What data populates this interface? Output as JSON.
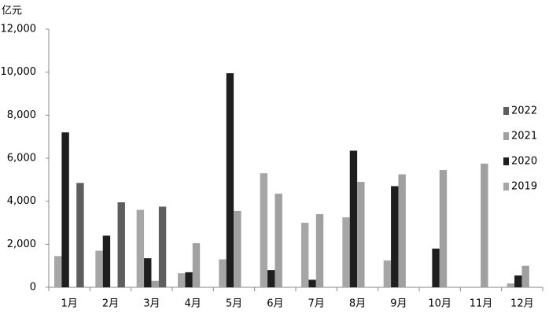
{
  "chart_data": {
    "type": "bar",
    "y_unit_label": "亿元",
    "categories": [
      "1月",
      "2月",
      "3月",
      "4月",
      "5月",
      "6月",
      "7月",
      "8月",
      "9月",
      "10月",
      "11月",
      "12月"
    ],
    "series": [
      {
        "name": "2019",
        "color": "#a6a6a6",
        "values": [
          1450,
          1700,
          3600,
          650,
          1300,
          5300,
          3000,
          3250,
          1250,
          null,
          null,
          180
        ]
      },
      {
        "name": "2020",
        "color": "#1e1e1e",
        "values": [
          7200,
          2400,
          1350,
          700,
          9950,
          800,
          350,
          6350,
          4700,
          1800,
          null,
          550
        ]
      },
      {
        "name": "2021",
        "color": "#a0a0a0",
        "values": [
          null,
          null,
          300,
          2050,
          3550,
          4350,
          3400,
          4900,
          5250,
          5450,
          5750,
          1000
        ]
      },
      {
        "name": "2022",
        "color": "#5e5e5e",
        "values": [
          4850,
          3950,
          3750,
          null,
          null,
          null,
          null,
          null,
          null,
          null,
          null,
          null
        ]
      }
    ],
    "ylim": [
      0,
      12000
    ],
    "yticks": [
      0,
      {
        "value": 2000,
        "label": "2,000"
      },
      {
        "value": 4000,
        "label": "4,000"
      },
      {
        "value": 6000,
        "label": "6,000"
      },
      {
        "value": 8000,
        "label": "8,000"
      },
      {
        "value": 10000,
        "label": "10,000"
      },
      {
        "value": 12000,
        "label": "12,000"
      }
    ],
    "legend_position": "right",
    "legend_order": "reversed",
    "grid": false
  }
}
